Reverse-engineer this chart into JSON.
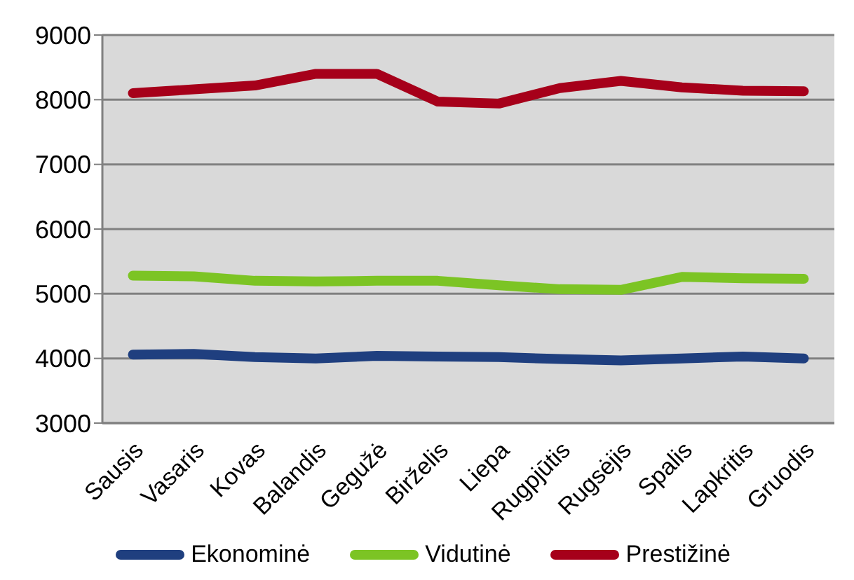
{
  "chart_data": {
    "type": "line",
    "categories": [
      "Sausis",
      "Vasaris",
      "Kovas",
      "Balandis",
      "Gegužė",
      "Birželis",
      "Liepa",
      "Rugpjūtis",
      "Rugsėjis",
      "Spalis",
      "Lapkritis",
      "Gruodis"
    ],
    "series": [
      {
        "name": "Ekonominė",
        "color": "#1f3f7f",
        "values": [
          4060,
          4070,
          4020,
          4000,
          4040,
          4030,
          4020,
          3990,
          3970,
          4000,
          4030,
          4000
        ]
      },
      {
        "name": "Vidutinė",
        "color": "#7cc424",
        "values": [
          5280,
          5270,
          5200,
          5190,
          5200,
          5200,
          5130,
          5070,
          5060,
          5260,
          5240,
          5230
        ]
      },
      {
        "name": "Prestižinė",
        "color": "#a6001a",
        "values": [
          8100,
          8160,
          8220,
          8400,
          8400,
          7970,
          7940,
          8180,
          8290,
          8190,
          8140,
          8130
        ]
      }
    ],
    "ylim": [
      3000,
      9000
    ],
    "yticks": [
      3000,
      4000,
      5000,
      6000,
      7000,
      8000,
      9000
    ],
    "grid": "y",
    "legend": "bottom",
    "marker": "none",
    "line_style": "solid"
  }
}
